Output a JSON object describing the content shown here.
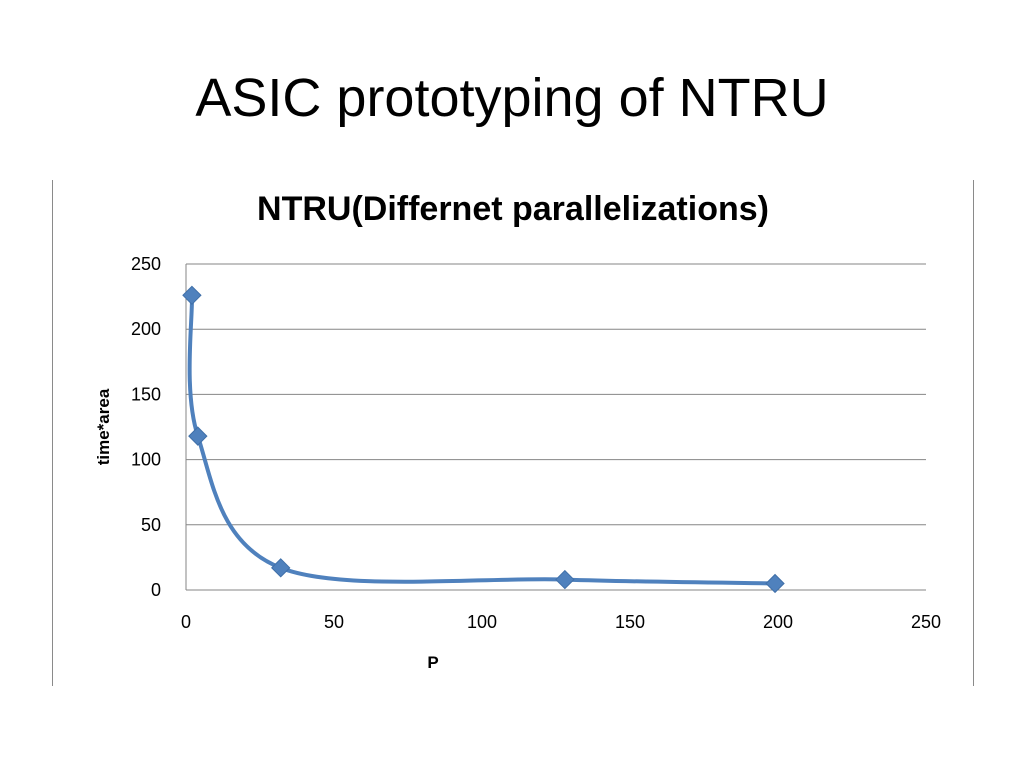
{
  "slide": {
    "title": "ASIC prototyping of NTRU"
  },
  "chart_data": {
    "type": "scatter",
    "title": "NTRU(Differnet parallelizations)",
    "xlabel": "P",
    "ylabel": "time*area",
    "xlim": [
      0,
      250
    ],
    "ylim": [
      0,
      250
    ],
    "x_ticks": [
      0,
      50,
      100,
      150,
      200,
      250
    ],
    "y_ticks": [
      0,
      50,
      100,
      150,
      200,
      250
    ],
    "grid": "horizontal",
    "legend": "none",
    "smoothed_line": true,
    "series": [
      {
        "color": "#4f81bd",
        "marker": "diamond",
        "x": [
          2,
          4,
          32,
          128,
          199
        ],
        "y": [
          226,
          118,
          17,
          8,
          5
        ]
      }
    ]
  }
}
